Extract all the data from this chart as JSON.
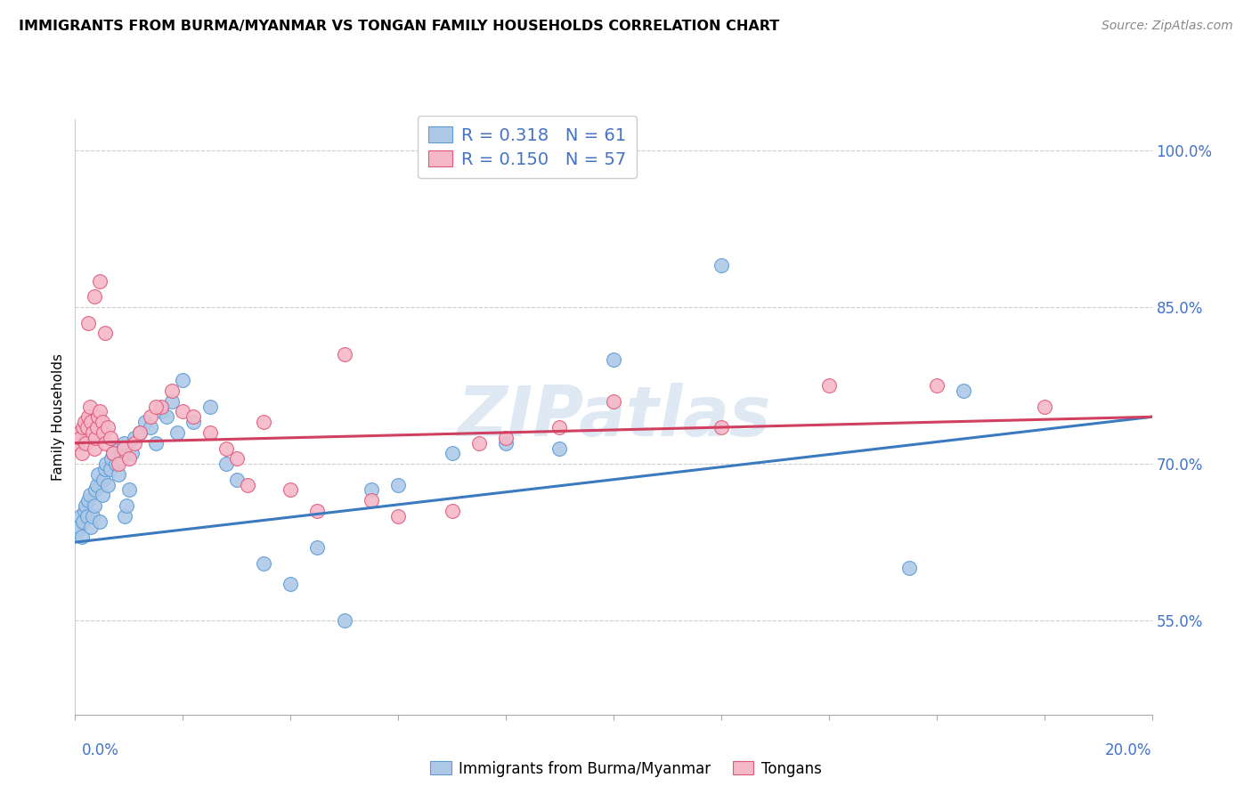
{
  "title": "IMMIGRANTS FROM BURMA/MYANMAR VS TONGAN FAMILY HOUSEHOLDS CORRELATION CHART",
  "source": "Source: ZipAtlas.com",
  "ylabel": "Family Households",
  "xmin": 0.0,
  "xmax": 20.0,
  "ymin": 46.0,
  "ymax": 103.0,
  "r_blue": 0.318,
  "n_blue": 61,
  "r_pink": 0.15,
  "n_pink": 57,
  "blue_fill": "#aec9e8",
  "blue_edge": "#5b9bd5",
  "pink_fill": "#f5b8c8",
  "pink_edge": "#e05878",
  "trendline_blue": "#3a7abf",
  "trendline_pink": "#d04060",
  "legend_text_color": "#4472c4",
  "watermark": "ZIPatlas",
  "ytick_vals": [
    55.0,
    70.0,
    85.0,
    100.0
  ],
  "ytick_labels": [
    "55.0%",
    "70.0%",
    "85.0%",
    "100.0%"
  ],
  "trend_blue_y0": 62.5,
  "trend_blue_y1": 74.5,
  "trend_pink_y0": 72.0,
  "trend_pink_y1": 74.5,
  "blue_x": [
    0.05,
    0.08,
    0.1,
    0.12,
    0.15,
    0.18,
    0.2,
    0.22,
    0.25,
    0.28,
    0.3,
    0.32,
    0.35,
    0.38,
    0.4,
    0.42,
    0.45,
    0.5,
    0.52,
    0.55,
    0.58,
    0.6,
    0.65,
    0.68,
    0.7,
    0.75,
    0.8,
    0.82,
    0.85,
    0.9,
    0.92,
    0.95,
    1.0,
    1.05,
    1.1,
    1.2,
    1.3,
    1.4,
    1.5,
    1.6,
    1.7,
    1.8,
    1.9,
    2.0,
    2.2,
    2.5,
    2.8,
    3.0,
    3.5,
    4.0,
    4.5,
    5.0,
    5.5,
    6.0,
    7.0,
    8.0,
    9.0,
    10.0,
    12.0,
    15.5,
    16.5
  ],
  "blue_y": [
    63.5,
    64.0,
    65.0,
    63.0,
    64.5,
    65.5,
    66.0,
    65.0,
    66.5,
    67.0,
    64.0,
    65.0,
    66.0,
    67.5,
    68.0,
    69.0,
    64.5,
    67.0,
    68.5,
    69.5,
    70.0,
    68.0,
    69.5,
    70.5,
    71.0,
    70.0,
    69.0,
    71.5,
    70.5,
    72.0,
    65.0,
    66.0,
    67.5,
    71.0,
    72.5,
    73.0,
    74.0,
    73.5,
    72.0,
    75.0,
    74.5,
    76.0,
    73.0,
    78.0,
    74.0,
    75.5,
    70.0,
    68.5,
    60.5,
    58.5,
    62.0,
    55.0,
    67.5,
    68.0,
    71.0,
    72.0,
    71.5,
    80.0,
    89.0,
    60.0,
    77.0
  ],
  "pink_x": [
    0.05,
    0.08,
    0.1,
    0.12,
    0.15,
    0.18,
    0.2,
    0.22,
    0.25,
    0.28,
    0.3,
    0.32,
    0.35,
    0.38,
    0.4,
    0.42,
    0.45,
    0.5,
    0.52,
    0.55,
    0.6,
    0.65,
    0.7,
    0.8,
    0.9,
    1.0,
    1.1,
    1.2,
    1.4,
    1.6,
    1.8,
    2.0,
    2.2,
    2.5,
    3.0,
    3.5,
    4.0,
    4.5,
    5.0,
    6.0,
    7.0,
    8.0,
    9.0,
    10.0,
    12.0,
    14.0,
    16.0,
    18.0,
    0.25,
    0.35,
    0.45,
    0.55,
    1.5,
    2.8,
    3.2,
    5.5,
    7.5
  ],
  "pink_y": [
    72.0,
    73.0,
    72.5,
    71.0,
    73.5,
    74.0,
    72.0,
    73.5,
    74.5,
    75.5,
    74.0,
    73.0,
    71.5,
    72.5,
    73.5,
    74.5,
    75.0,
    74.0,
    73.0,
    72.0,
    73.5,
    72.5,
    71.0,
    70.0,
    71.5,
    70.5,
    72.0,
    73.0,
    74.5,
    75.5,
    77.0,
    75.0,
    74.5,
    73.0,
    70.5,
    74.0,
    67.5,
    65.5,
    80.5,
    65.0,
    65.5,
    72.5,
    73.5,
    76.0,
    73.5,
    77.5,
    77.5,
    75.5,
    83.5,
    86.0,
    87.5,
    82.5,
    75.5,
    71.5,
    68.0,
    66.5,
    72.0
  ]
}
